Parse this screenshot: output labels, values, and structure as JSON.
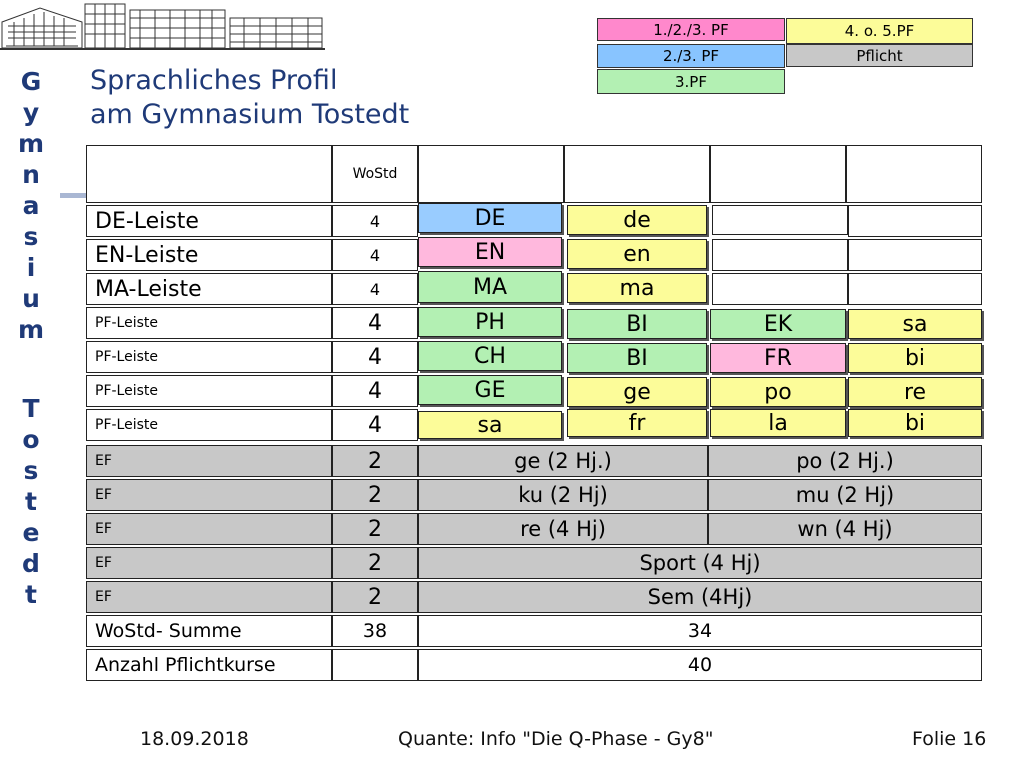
{
  "slide": {
    "title_line1": "Sprachliches Profil",
    "title_line2": "am Gymnasium Tostedt",
    "vertical_word1": [
      "G",
      "y",
      "m",
      "n",
      "a",
      "s",
      "i",
      "u",
      "m"
    ],
    "vertical_word2": [
      "T",
      "o",
      "s",
      "t",
      "e",
      "d",
      "t"
    ]
  },
  "legend": [
    {
      "label": "1./2./3. PF",
      "color": "#ff88cc"
    },
    {
      "label": "4. o. 5.PF",
      "color": "#fcfc99"
    },
    {
      "label": "2./3. PF",
      "color": "#88c4ff"
    },
    {
      "label": "Pflicht",
      "color": "#c8c8c8"
    },
    {
      "label": "3.PF",
      "color": "#b3f0b3"
    }
  ],
  "table": {
    "header_wostd": "WoStd",
    "rows": [
      {
        "label": "DE-Leiste",
        "wostd": "4",
        "c1": "DE",
        "c2": "de",
        "c3": "",
        "c4": ""
      },
      {
        "label": "EN-Leiste",
        "wostd": "4",
        "c1": "EN",
        "c2": "en",
        "c3": "",
        "c4": ""
      },
      {
        "label": "MA-Leiste",
        "wostd": "4",
        "c1": "MA",
        "c2": "ma",
        "c3": "",
        "c4": ""
      },
      {
        "label": "PF-Leiste",
        "wostd": "4",
        "c1": "PH",
        "c2": "BI",
        "c3": "EK",
        "c4": "sa"
      },
      {
        "label": "PF-Leiste",
        "wostd": "4",
        "c1": "CH",
        "c2": "BI",
        "c3": "FR",
        "c4": "bi"
      },
      {
        "label": "PF-Leiste",
        "wostd": "4",
        "c1": "GE",
        "c2": "ge",
        "c3": "po",
        "c4": "re"
      },
      {
        "label": "PF-Leiste",
        "wostd": "4",
        "c1": "sa",
        "c2": "fr",
        "c3": "la",
        "c4": "bi"
      }
    ],
    "ef_rows": [
      {
        "label": "EF",
        "wostd": "2",
        "left": "ge (2 Hj.)",
        "right": "po (2 Hj.)"
      },
      {
        "label": "EF",
        "wostd": "2",
        "left": "ku (2 Hj)",
        "right": "mu (2 Hj)"
      },
      {
        "label": "EF",
        "wostd": "2",
        "left": "re (4 Hj)",
        "right": "wn (4 Hj)"
      },
      {
        "label": "EF",
        "wostd": "2",
        "full": "Sport (4 Hj)"
      },
      {
        "label": "EF",
        "wostd": "2",
        "full": "Sem (4Hj)"
      }
    ],
    "sum_row": {
      "label": "WoStd- Summe",
      "wostd": "38",
      "value": "34"
    },
    "count_row": {
      "label": "Anzahl Pflichtkurse",
      "wostd": "",
      "value": "40"
    }
  },
  "footer": {
    "date": "18.09.2018",
    "center": "Quante: Info \"Die Q-Phase - Gy8\"",
    "slide": "Folie 16"
  }
}
